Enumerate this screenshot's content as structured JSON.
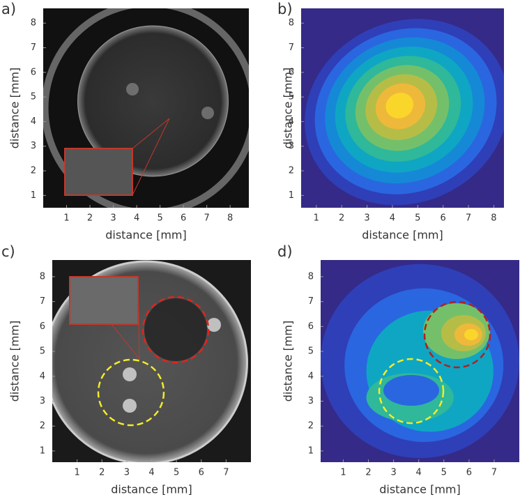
{
  "chart_data": [
    {
      "type": "image",
      "panel_label": "a)",
      "xlabel": "distance [mm]",
      "ylabel": "distance [mm]",
      "xlim": [
        0,
        8.8
      ],
      "ylim": [
        0.5,
        8.6
      ],
      "xticks": [
        1,
        2,
        3,
        4,
        5,
        6,
        7,
        8
      ],
      "yticks": [
        1,
        2,
        3,
        4,
        5,
        6,
        7,
        8
      ]
    },
    {
      "type": "contour",
      "panel_label": "b)",
      "xlabel": "distance [mm]",
      "ylabel": "distance [mm]",
      "xlim": [
        0.4,
        8.4
      ],
      "ylim": [
        0.5,
        8.6
      ],
      "xticks": [
        1,
        2,
        3,
        4,
        5,
        6,
        7,
        8
      ],
      "yticks": [
        1,
        2,
        3,
        4,
        5,
        6,
        7,
        8
      ]
    },
    {
      "type": "image",
      "panel_label": "c)",
      "xlabel": "distance [mm]",
      "ylabel": "distance [mm]",
      "xlim": [
        0,
        8
      ],
      "ylim": [
        0.55,
        8.67
      ],
      "xticks": [
        1,
        2,
        3,
        4,
        5,
        6,
        7
      ],
      "yticks": [
        1,
        2,
        3,
        4,
        5,
        6,
        7,
        8
      ]
    },
    {
      "type": "contour",
      "panel_label": "d)",
      "xlabel": "distance [mm]",
      "ylabel": "distance [mm]",
      "xlim": [
        0.1,
        8
      ],
      "ylim": [
        0.55,
        8.67
      ],
      "xticks": [
        1,
        2,
        3,
        4,
        5,
        6,
        7
      ],
      "yticks": [
        1,
        2,
        3,
        4,
        5,
        6,
        7,
        8
      ]
    }
  ]
}
